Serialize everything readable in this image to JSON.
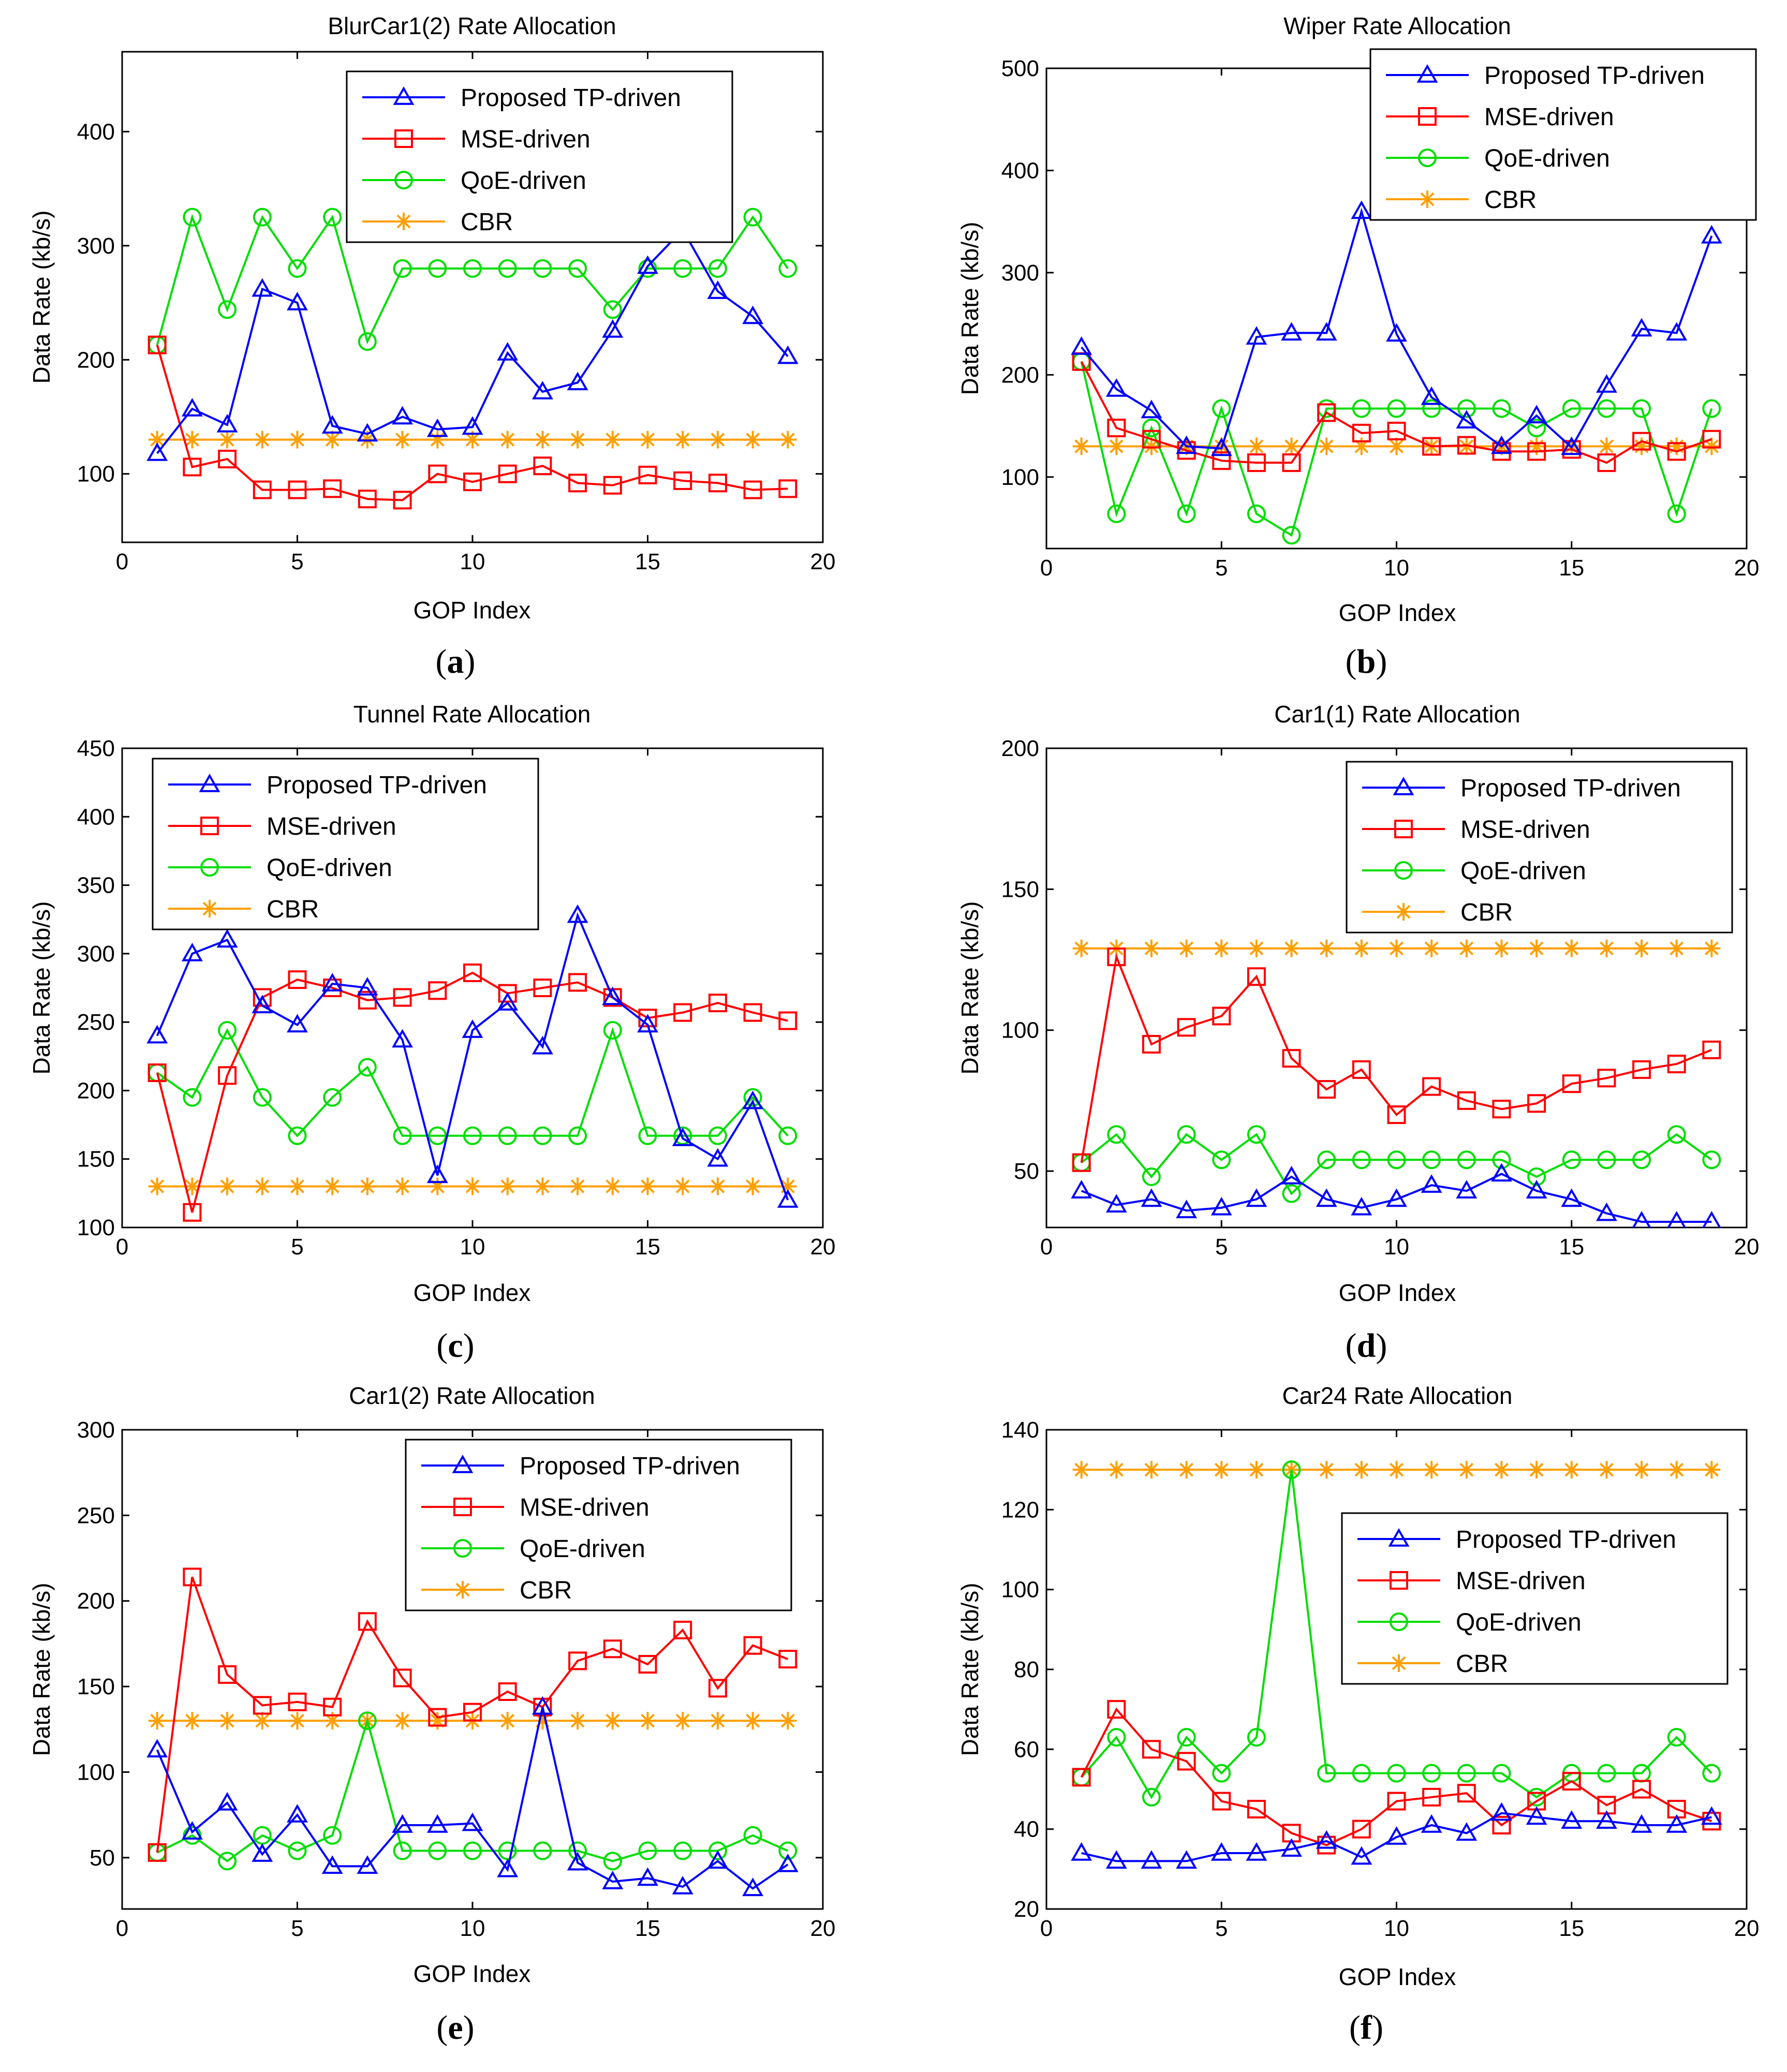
{
  "figure": {
    "x_label": "GOP Index",
    "y_label": "Data Rate (kb/s)"
  },
  "legend": {
    "labels": [
      "Proposed TP-driven",
      "MSE-driven",
      "QoE-driven",
      "CBR"
    ],
    "colors": [
      "#0000ff",
      "#ff0000",
      "#00dd00",
      "#ff9f00"
    ],
    "markers": [
      "triangle",
      "square",
      "circle",
      "asterisk"
    ]
  },
  "chart_data": [
    {
      "type": "line",
      "panel": "a",
      "caption": "(a)",
      "title": "BlurCar1(2) Rate Allocation",
      "xlabel": "GOP Index",
      "ylabel": "Data Rate (kb/s)",
      "xlim": [
        0,
        20
      ],
      "ylim": [
        40,
        470
      ],
      "xticks": [
        0,
        5,
        10,
        15,
        20
      ],
      "yticks": [
        100,
        200,
        300,
        400
      ],
      "legend_position": "top-right",
      "x": [
        1,
        2,
        3,
        4,
        5,
        6,
        7,
        8,
        9,
        10,
        11,
        12,
        13,
        14,
        15,
        16,
        17,
        18,
        19
      ],
      "series": [
        {
          "name": "Proposed TP-driven",
          "values": [
            118,
            157,
            143,
            262,
            250,
            142,
            135,
            150,
            139,
            141,
            206,
            172,
            180,
            226,
            282,
            314,
            260,
            238,
            203
          ]
        },
        {
          "name": "MSE-driven",
          "values": [
            213,
            106,
            113,
            86,
            86,
            87,
            78,
            77,
            100,
            93,
            100,
            107,
            92,
            90,
            99,
            94,
            92,
            86,
            87
          ]
        },
        {
          "name": "QoE-driven",
          "values": [
            213,
            325,
            244,
            325,
            280,
            325,
            216,
            280,
            280,
            280,
            280,
            280,
            280,
            244,
            280,
            280,
            280,
            325,
            280
          ]
        },
        {
          "name": "CBR",
          "values": [
            130,
            130,
            130,
            130,
            130,
            130,
            130,
            130,
            130,
            130,
            130,
            130,
            130,
            130,
            130,
            130,
            130,
            130,
            130
          ]
        }
      ]
    },
    {
      "type": "line",
      "panel": "b",
      "caption": "(b)",
      "title": "Wiper Rate Allocation",
      "xlabel": "GOP Index",
      "ylabel": "Data Rate (kb/s)",
      "xlim": [
        0,
        20
      ],
      "ylim": [
        30,
        500
      ],
      "xticks": [
        0,
        5,
        10,
        15,
        20
      ],
      "yticks": [
        100,
        200,
        300,
        400,
        500
      ],
      "legend_position": "top-right",
      "x": [
        1,
        2,
        3,
        4,
        5,
        6,
        7,
        8,
        9,
        10,
        11,
        12,
        13,
        14,
        15,
        16,
        17,
        18,
        19
      ],
      "series": [
        {
          "name": "Proposed TP-driven",
          "values": [
            227,
            186,
            165,
            130,
            128,
            237,
            241,
            241,
            360,
            240,
            178,
            155,
            130,
            160,
            129,
            190,
            245,
            241,
            336
          ]
        },
        {
          "name": "MSE-driven",
          "values": [
            213,
            148,
            137,
            126,
            116,
            114,
            114,
            163,
            143,
            145,
            130,
            131,
            125,
            125,
            127,
            114,
            135,
            125,
            137
          ]
        },
        {
          "name": "QoE-driven",
          "values": [
            213,
            64,
            148,
            64,
            167,
            64,
            43,
            167,
            167,
            167,
            167,
            167,
            167,
            148,
            167,
            167,
            167,
            64,
            167
          ]
        },
        {
          "name": "CBR",
          "values": [
            130,
            130,
            130,
            130,
            130,
            130,
            130,
            130,
            130,
            130,
            130,
            130,
            130,
            130,
            130,
            130,
            130,
            130,
            130
          ]
        }
      ]
    },
    {
      "type": "line",
      "panel": "c",
      "caption": "(c)",
      "title": "Tunnel Rate Allocation",
      "xlabel": "GOP Index",
      "ylabel": "Data Rate (kb/s)",
      "xlim": [
        0,
        20
      ],
      "ylim": [
        100,
        450
      ],
      "xticks": [
        0,
        5,
        10,
        15,
        20
      ],
      "yticks": [
        100,
        150,
        200,
        250,
        300,
        350,
        400,
        450
      ],
      "legend_position": "top-left",
      "x": [
        1,
        2,
        3,
        4,
        5,
        6,
        7,
        8,
        9,
        10,
        11,
        12,
        13,
        14,
        15,
        16,
        17,
        18,
        19
      ],
      "series": [
        {
          "name": "Proposed TP-driven",
          "values": [
            240,
            300,
            310,
            262,
            248,
            278,
            275,
            237,
            138,
            244,
            264,
            232,
            328,
            268,
            248,
            165,
            150,
            192,
            120
          ]
        },
        {
          "name": "MSE-driven",
          "values": [
            213,
            111,
            211,
            268,
            281,
            275,
            266,
            268,
            273,
            286,
            271,
            275,
            279,
            268,
            253,
            257,
            264,
            257,
            251
          ]
        },
        {
          "name": "QoE-driven",
          "values": [
            213,
            195,
            244,
            195,
            167,
            195,
            217,
            167,
            167,
            167,
            167,
            167,
            167,
            244,
            167,
            167,
            167,
            195,
            167
          ]
        },
        {
          "name": "CBR",
          "values": [
            130,
            130,
            130,
            130,
            130,
            130,
            130,
            130,
            130,
            130,
            130,
            130,
            130,
            130,
            130,
            130,
            130,
            130,
            130
          ]
        }
      ]
    },
    {
      "type": "line",
      "panel": "d",
      "caption": "(d)",
      "title": "Car1(1) Rate Allocation",
      "xlabel": "GOP Index",
      "ylabel": "Data Rate (kb/s)",
      "xlim": [
        0,
        20
      ],
      "ylim": [
        30,
        200
      ],
      "xticks": [
        0,
        5,
        10,
        15,
        20
      ],
      "yticks": [
        50,
        100,
        150,
        200
      ],
      "legend_position": "top-right",
      "x": [
        1,
        2,
        3,
        4,
        5,
        6,
        7,
        8,
        9,
        10,
        11,
        12,
        13,
        14,
        15,
        16,
        17,
        18,
        19
      ],
      "series": [
        {
          "name": "Proposed TP-driven",
          "values": [
            43,
            38,
            40,
            36,
            37,
            40,
            48,
            40,
            37,
            40,
            45,
            43,
            49,
            43,
            40,
            35,
            32,
            32,
            32
          ]
        },
        {
          "name": "MSE-driven",
          "values": [
            53,
            126,
            95,
            101,
            105,
            119,
            90,
            79,
            86,
            70,
            80,
            75,
            72,
            74,
            81,
            83,
            86,
            88,
            93
          ]
        },
        {
          "name": "QoE-driven",
          "values": [
            53,
            63,
            48,
            63,
            54,
            63,
            42,
            54,
            54,
            54,
            54,
            54,
            54,
            48,
            54,
            54,
            54,
            63,
            54
          ]
        },
        {
          "name": "CBR",
          "values": [
            129,
            129,
            129,
            129,
            129,
            129,
            129,
            129,
            129,
            129,
            129,
            129,
            129,
            129,
            129,
            129,
            129,
            129,
            129
          ]
        }
      ]
    },
    {
      "type": "line",
      "panel": "e",
      "caption": "(e)",
      "title": "Car1(2) Rate Allocation",
      "xlabel": "GOP Index",
      "ylabel": "Data Rate (kb/s)",
      "xlim": [
        0,
        20
      ],
      "ylim": [
        20,
        300
      ],
      "xticks": [
        0,
        5,
        10,
        15,
        20
      ],
      "yticks": [
        50,
        100,
        150,
        200,
        250,
        300
      ],
      "legend_position": "top-right",
      "x": [
        1,
        2,
        3,
        4,
        5,
        6,
        7,
        8,
        9,
        10,
        11,
        12,
        13,
        14,
        15,
        16,
        17,
        18,
        19
      ],
      "series": [
        {
          "name": "Proposed TP-driven",
          "values": [
            113,
            65,
            82,
            52,
            75,
            45,
            45,
            69,
            69,
            70,
            43,
            138,
            47,
            36,
            38,
            33,
            48,
            32,
            46
          ]
        },
        {
          "name": "MSE-driven",
          "values": [
            53,
            214,
            157,
            139,
            141,
            138,
            188,
            155,
            132,
            135,
            147,
            138,
            165,
            172,
            163,
            183,
            149,
            174,
            166
          ]
        },
        {
          "name": "QoE-driven",
          "values": [
            53,
            63,
            48,
            63,
            54,
            63,
            130,
            54,
            54,
            54,
            54,
            54,
            54,
            48,
            54,
            54,
            54,
            63,
            54
          ]
        },
        {
          "name": "CBR",
          "values": [
            130,
            130,
            130,
            130,
            130,
            130,
            130,
            130,
            130,
            130,
            130,
            130,
            130,
            130,
            130,
            130,
            130,
            130,
            130
          ]
        }
      ]
    },
    {
      "type": "line",
      "panel": "f",
      "caption": "(f)",
      "title": "Car24 Rate Allocation",
      "xlabel": "GOP Index",
      "ylabel": "Data Rate (kb/s)",
      "xlim": [
        0,
        20
      ],
      "ylim": [
        20,
        140
      ],
      "xticks": [
        0,
        5,
        10,
        15,
        20
      ],
      "yticks": [
        20,
        40,
        60,
        80,
        100,
        120,
        140
      ],
      "legend_position": "middle-right",
      "x": [
        1,
        2,
        3,
        4,
        5,
        6,
        7,
        8,
        9,
        10,
        11,
        12,
        13,
        14,
        15,
        16,
        17,
        18,
        19
      ],
      "series": [
        {
          "name": "Proposed TP-driven",
          "values": [
            34,
            32,
            32,
            32,
            34,
            34,
            35,
            37,
            33,
            38,
            41,
            39,
            44,
            43,
            42,
            42,
            41,
            41,
            43
          ]
        },
        {
          "name": "MSE-driven",
          "values": [
            53,
            70,
            60,
            57,
            47,
            45,
            39,
            36,
            40,
            47,
            48,
            49,
            41,
            47,
            52,
            46,
            50,
            45,
            42
          ]
        },
        {
          "name": "QoE-driven",
          "values": [
            53,
            63,
            48,
            63,
            54,
            63,
            130,
            54,
            54,
            54,
            54,
            54,
            54,
            48,
            54,
            54,
            54,
            63,
            54
          ]
        },
        {
          "name": "CBR",
          "values": [
            130,
            130,
            130,
            130,
            130,
            130,
            130,
            130,
            130,
            130,
            130,
            130,
            130,
            130,
            130,
            130,
            130,
            130,
            130
          ]
        }
      ]
    }
  ]
}
